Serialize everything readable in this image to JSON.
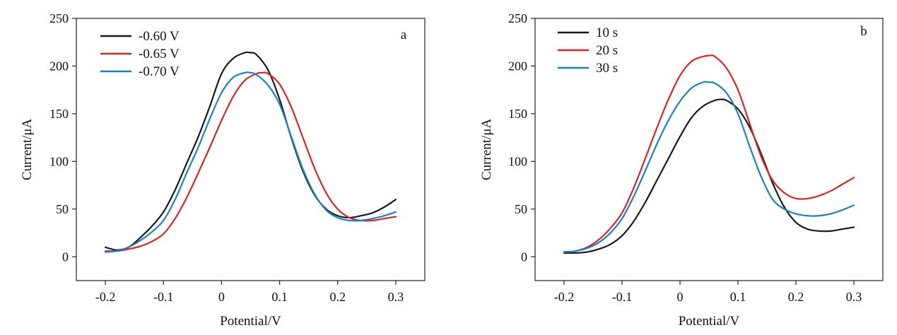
{
  "chart_data": [
    {
      "type": "line",
      "panel_label": "a",
      "xlabel": "Potential/V",
      "ylabel": "Current/μA",
      "xlim": [
        -0.25,
        0.35
      ],
      "ylim": [
        -25,
        250
      ],
      "xticks": [
        -0.2,
        -0.1,
        0,
        0.1,
        0.2,
        0.3
      ],
      "xtick_labels": [
        "-0.2",
        "-0.1",
        "0",
        "0.1",
        "0.2",
        "0.3"
      ],
      "yticks": [
        0,
        50,
        100,
        150,
        200,
        250
      ],
      "ytick_labels": [
        "0",
        "50",
        "100",
        "150",
        "200",
        "250"
      ],
      "legend_position": "top-left",
      "grid": false,
      "series": [
        {
          "name": "-0.60 V",
          "color": "#1a1a1a",
          "x": [
            -0.2,
            -0.18,
            -0.16,
            -0.14,
            -0.12,
            -0.1,
            -0.08,
            -0.06,
            -0.04,
            -0.02,
            0.0,
            0.02,
            0.04,
            0.05,
            0.06,
            0.08,
            0.1,
            0.12,
            0.14,
            0.16,
            0.18,
            0.2,
            0.22,
            0.24,
            0.26,
            0.28,
            0.3
          ],
          "values": [
            10,
            7,
            10,
            20,
            32,
            47,
            70,
            98,
            126,
            158,
            192,
            208,
            214,
            214,
            212,
            196,
            165,
            125,
            90,
            65,
            50,
            43,
            41,
            43,
            46,
            52,
            60
          ]
        },
        {
          "name": "-0.65 V",
          "color": "#d62728",
          "x": [
            -0.2,
            -0.18,
            -0.16,
            -0.14,
            -0.12,
            -0.1,
            -0.08,
            -0.06,
            -0.04,
            -0.02,
            0.0,
            0.02,
            0.04,
            0.06,
            0.07,
            0.08,
            0.1,
            0.12,
            0.14,
            0.16,
            0.18,
            0.2,
            0.22,
            0.24,
            0.26,
            0.28,
            0.3
          ],
          "values": [
            6,
            6,
            8,
            11,
            16,
            24,
            40,
            62,
            88,
            115,
            143,
            168,
            185,
            192,
            193,
            192,
            181,
            157,
            125,
            93,
            67,
            50,
            41,
            38,
            38,
            40,
            42
          ]
        },
        {
          "name": "-0.70 V",
          "color": "#1f7fc4",
          "x": [
            -0.2,
            -0.18,
            -0.16,
            -0.14,
            -0.12,
            -0.1,
            -0.08,
            -0.06,
            -0.04,
            -0.02,
            0.0,
            0.02,
            0.04,
            0.05,
            0.06,
            0.08,
            0.1,
            0.12,
            0.14,
            0.16,
            0.18,
            0.2,
            0.22,
            0.24,
            0.26,
            0.28,
            0.3
          ],
          "values": [
            5,
            6,
            10,
            17,
            26,
            38,
            60,
            88,
            115,
            145,
            172,
            188,
            193,
            193,
            191,
            180,
            160,
            126,
            92,
            66,
            49,
            41,
            38,
            38,
            40,
            43,
            47
          ]
        }
      ]
    },
    {
      "type": "line",
      "panel_label": "b",
      "xlabel": "Potential/V",
      "ylabel": "Current/μA",
      "xlim": [
        -0.25,
        0.35
      ],
      "ylim": [
        -25,
        250
      ],
      "xticks": [
        -0.2,
        -0.1,
        0,
        0.1,
        0.2,
        0.3
      ],
      "xtick_labels": [
        "-0.2",
        "-0.1",
        "0",
        "0.1",
        "0.2",
        "0.3"
      ],
      "yticks": [
        0,
        50,
        100,
        150,
        200,
        250
      ],
      "ytick_labels": [
        "0",
        "50",
        "100",
        "150",
        "200",
        "250"
      ],
      "legend_position": "top-left",
      "grid": false,
      "series": [
        {
          "name": "10 s",
          "color": "#1a1a1a",
          "x": [
            -0.2,
            -0.18,
            -0.16,
            -0.14,
            -0.12,
            -0.1,
            -0.08,
            -0.06,
            -0.04,
            -0.02,
            0.0,
            0.02,
            0.04,
            0.06,
            0.07,
            0.08,
            0.1,
            0.12,
            0.14,
            0.16,
            0.18,
            0.2,
            0.22,
            0.24,
            0.26,
            0.28,
            0.3
          ],
          "values": [
            4,
            4,
            5,
            8,
            13,
            22,
            37,
            57,
            80,
            103,
            126,
            146,
            158,
            164,
            165,
            164,
            155,
            136,
            108,
            77,
            52,
            36,
            29,
            27,
            27,
            29,
            31
          ]
        },
        {
          "name": "20 s",
          "color": "#d62728",
          "x": [
            -0.2,
            -0.18,
            -0.16,
            -0.14,
            -0.12,
            -0.1,
            -0.08,
            -0.06,
            -0.04,
            -0.02,
            0.0,
            0.02,
            0.04,
            0.05,
            0.06,
            0.08,
            0.1,
            0.12,
            0.14,
            0.16,
            0.18,
            0.2,
            0.22,
            0.24,
            0.26,
            0.28,
            0.3
          ],
          "values": [
            5,
            6,
            10,
            18,
            30,
            46,
            72,
            103,
            135,
            165,
            190,
            205,
            210,
            211,
            210,
            198,
            175,
            140,
            105,
            80,
            67,
            61,
            61,
            64,
            69,
            76,
            83
          ]
        },
        {
          "name": "30 s",
          "color": "#1f7fc4",
          "x": [
            -0.2,
            -0.18,
            -0.16,
            -0.14,
            -0.12,
            -0.1,
            -0.08,
            -0.06,
            -0.04,
            -0.02,
            0.0,
            0.02,
            0.04,
            0.05,
            0.06,
            0.08,
            0.1,
            0.12,
            0.14,
            0.16,
            0.18,
            0.2,
            0.22,
            0.24,
            0.26,
            0.28,
            0.3
          ],
          "values": [
            5,
            6,
            9,
            15,
            25,
            40,
            63,
            90,
            118,
            143,
            163,
            177,
            183,
            183,
            182,
            172,
            150,
            116,
            84,
            60,
            50,
            45,
            43,
            43,
            45,
            49,
            54
          ]
        }
      ]
    }
  ]
}
